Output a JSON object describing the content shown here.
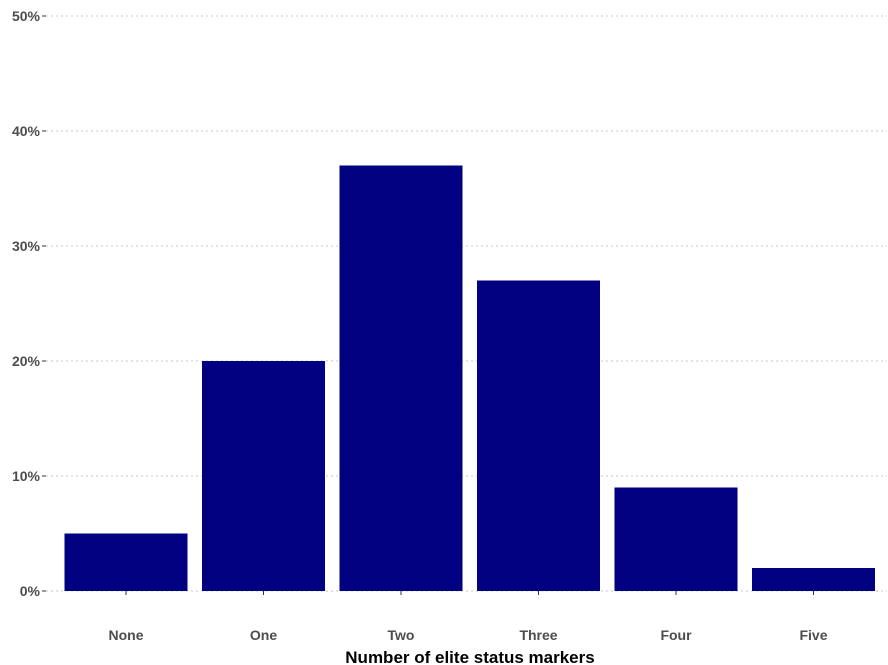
{
  "chart_data": {
    "type": "bar",
    "title": "",
    "xlabel": "Number of elite status markers",
    "ylabel": "",
    "categories": [
      "None",
      "One",
      "Two",
      "Three",
      "Four",
      "Five"
    ],
    "values": [
      5,
      20,
      37,
      27,
      9,
      2
    ],
    "value_unit": "percent",
    "ylim": [
      0,
      50
    ],
    "yticks": [
      0,
      10,
      20,
      30,
      40,
      50
    ],
    "ytick_labels": [
      "0%",
      "10%",
      "20%",
      "30%",
      "40%",
      "50%"
    ],
    "grid": "horizontal dotted",
    "legend": "none",
    "bar_color": "#000080"
  }
}
